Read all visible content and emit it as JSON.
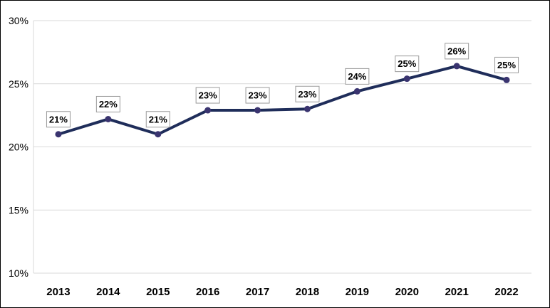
{
  "chart_data": {
    "type": "line",
    "categories": [
      "2013",
      "2014",
      "2015",
      "2016",
      "2017",
      "2018",
      "2019",
      "2020",
      "2021",
      "2022"
    ],
    "series": [
      {
        "values": [
          21.0,
          22.2,
          21.0,
          22.9,
          22.9,
          23.0,
          24.4,
          25.4,
          26.4,
          25.3
        ],
        "data_labels": [
          "21%",
          "22%",
          "21%",
          "23%",
          "23%",
          "23%",
          "24%",
          "25%",
          "26%",
          "25%"
        ],
        "color": "#1f2d5a",
        "marker_color": "#3a3470"
      }
    ],
    "ylim": [
      10,
      30
    ],
    "yticks": [
      10,
      15,
      20,
      25,
      30
    ],
    "ytick_labels": [
      "10%",
      "15%",
      "20%",
      "25%",
      "30%"
    ],
    "title": "",
    "xlabel": "",
    "ylabel": "",
    "grid": "horizontal",
    "legend": "none"
  }
}
